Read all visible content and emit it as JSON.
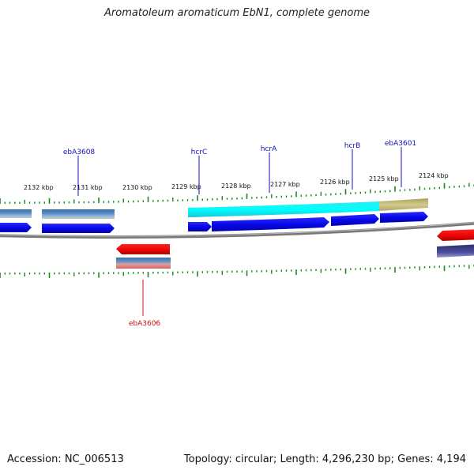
{
  "title": "Aromatoleum aromaticum EbN1, complete genome",
  "footer": {
    "accession": "Accession: NC_006513",
    "summary": "Topology: circular; Length: 4,296,230 bp; Genes: 4,194"
  },
  "colors": {
    "tick": "#1a8a1a",
    "backbone": "#888888",
    "forward_cds": "#1010e0",
    "reverse_cds": "#e01010",
    "gene_label_fwd": "#1010c0",
    "gene_label_rev": "#cc1010"
  },
  "scale": {
    "unit": "kbp",
    "ticks": [
      "2132 kbp",
      "2131 kbp",
      "2130 kbp",
      "2129 kbp",
      "2128 kbp",
      "2127 kbp",
      "2126 kbp",
      "2125 kbp",
      "2124 kbp"
    ]
  },
  "gene_labels": [
    {
      "text": "ebA3608",
      "strand": "forward"
    },
    {
      "text": "hcrC",
      "strand": "forward"
    },
    {
      "text": "hcrA",
      "strand": "forward"
    },
    {
      "text": "hcrB",
      "strand": "forward"
    },
    {
      "text": "ebA3601",
      "strand": "forward"
    },
    {
      "text": "ebA3606",
      "strand": "reverse"
    }
  ]
}
